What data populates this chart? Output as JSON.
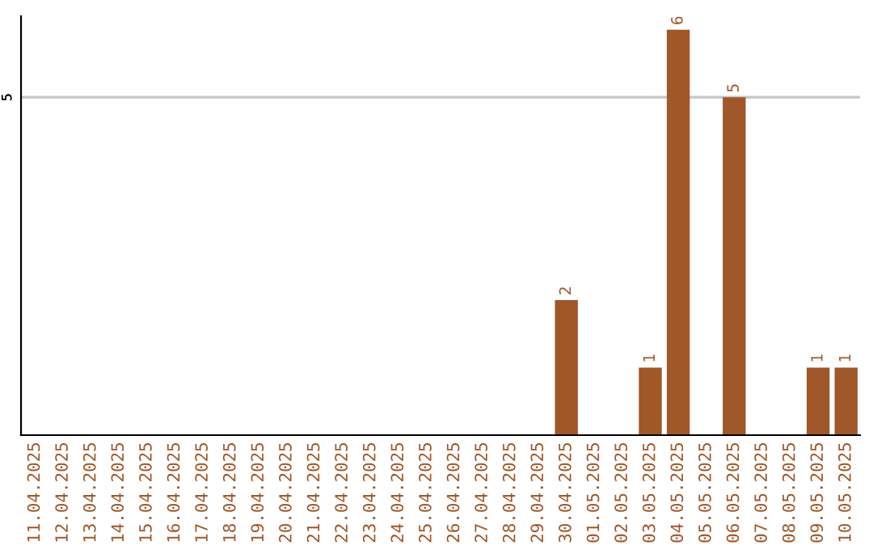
{
  "chart_data": {
    "type": "bar",
    "categories": [
      "11.04.2025",
      "12.04.2025",
      "13.04.2025",
      "14.04.2025",
      "15.04.2025",
      "16.04.2025",
      "17.04.2025",
      "18.04.2025",
      "19.04.2025",
      "20.04.2025",
      "21.04.2025",
      "22.04.2025",
      "23.04.2025",
      "24.04.2025",
      "25.04.2025",
      "26.04.2025",
      "27.04.2025",
      "28.04.2025",
      "29.04.2025",
      "30.04.2025",
      "01.05.2025",
      "02.05.2025",
      "03.05.2025",
      "04.05.2025",
      "05.05.2025",
      "06.05.2025",
      "07.05.2025",
      "08.05.2025",
      "09.05.2025",
      "10.05.2025"
    ],
    "values": [
      null,
      null,
      null,
      null,
      null,
      null,
      null,
      null,
      null,
      null,
      null,
      null,
      null,
      null,
      null,
      null,
      null,
      null,
      null,
      2,
      null,
      null,
      1,
      6,
      null,
      5,
      null,
      null,
      1,
      1
    ],
    "data_labels": true,
    "color": "#a0572a",
    "ylim": [
      0,
      6.2
    ],
    "ref_lines": [
      {
        "axis": "y",
        "value": 5,
        "label": "5",
        "color": "#c8c8c8"
      }
    ]
  }
}
